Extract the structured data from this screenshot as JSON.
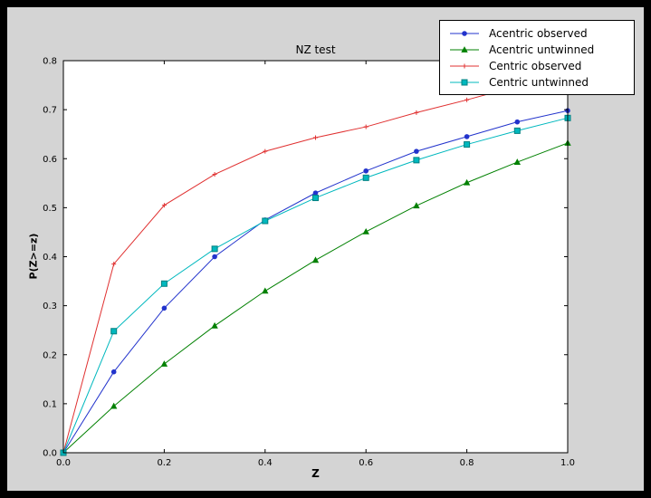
{
  "chart_data": {
    "type": "line",
    "title": "NZ test",
    "xlabel": "Z",
    "ylabel": "P(Z>=z)",
    "xlim": [
      0,
      1
    ],
    "ylim": [
      0,
      0.8
    ],
    "xticks": [
      0,
      0.2,
      0.4,
      0.6,
      0.8,
      1.0
    ],
    "xtick_labels": [
      "0.0",
      "0.2",
      "0.4",
      "0.6",
      "0.8",
      "1.0"
    ],
    "yticks": [
      0,
      0.1,
      0.2,
      0.3,
      0.4,
      0.5,
      0.6,
      0.7,
      0.8
    ],
    "ytick_labels": [
      "0.0",
      "0.1",
      "0.2",
      "0.3",
      "0.4",
      "0.5",
      "0.6",
      "0.7",
      "0.8"
    ],
    "grid": false,
    "legend_position": "upper right",
    "x": [
      0,
      0.1,
      0.2,
      0.3,
      0.4,
      0.5,
      0.6,
      0.7,
      0.8,
      0.9,
      1.0
    ],
    "series": [
      {
        "name": "Acentric observed",
        "color": "#2233cc",
        "marker": "circle",
        "values": [
          0,
          0.165,
          0.295,
          0.4,
          0.475,
          0.53,
          0.575,
          0.615,
          0.645,
          0.675,
          0.698
        ]
      },
      {
        "name": "Acentric untwinned",
        "color": "#008000",
        "marker": "triangle",
        "values": [
          0,
          0.095,
          0.181,
          0.259,
          0.33,
          0.393,
          0.451,
          0.504,
          0.551,
          0.593,
          0.632
        ]
      },
      {
        "name": "Centric observed",
        "color": "#e03030",
        "marker": "plus",
        "values": [
          0,
          0.385,
          0.505,
          0.568,
          0.615,
          0.643,
          0.665,
          0.694,
          0.72,
          0.748,
          0.772
        ]
      },
      {
        "name": "Centric untwinned",
        "color": "#00b8be",
        "marker": "square",
        "marker_edge": "#008080",
        "values": [
          0,
          0.248,
          0.345,
          0.416,
          0.473,
          0.52,
          0.561,
          0.597,
          0.629,
          0.657,
          0.683
        ]
      }
    ],
    "colors": {
      "page_bg": "#000000",
      "figure_bg": "#d4d4d4",
      "axes_bg": "#ffffff",
      "frame": "#000000",
      "text": "#000000"
    }
  }
}
